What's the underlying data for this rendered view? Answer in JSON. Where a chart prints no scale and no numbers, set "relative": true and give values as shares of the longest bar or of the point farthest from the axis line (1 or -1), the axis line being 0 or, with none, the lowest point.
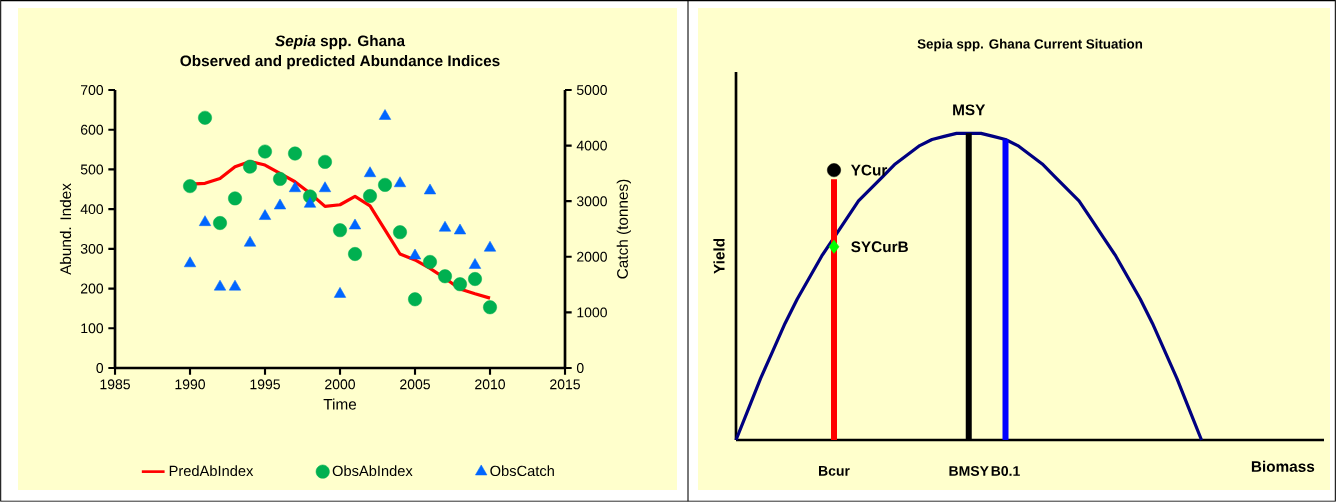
{
  "chart_data": [
    {
      "type": "scatter",
      "title": "*Sepia* spp. Ghana",
      "subtitle": "Observed and predicted Abundance Indices",
      "xlabel": "Time",
      "ylabel": "Abund. Index",
      "y2label": "Catch (tonnes)",
      "x": [
        1990,
        1991,
        1992,
        1993,
        1994,
        1995,
        1996,
        1997,
        1998,
        1999,
        2000,
        2001,
        2002,
        2003,
        2004,
        2005,
        2006,
        2007,
        2008,
        2009,
        2010
      ],
      "series": [
        {
          "name": "PredAbIndex",
          "type": "line",
          "color": "#ff0000",
          "marker": "none",
          "values": [
            463,
            465,
            477,
            507,
            520,
            511,
            490,
            469,
            440,
            407,
            411,
            432,
            408,
            348,
            287,
            272,
            251,
            226,
            199,
            187,
            176
          ]
        },
        {
          "name": "ObsAbIndex",
          "color": "#00b050",
          "marker": "circle",
          "values": [
            458,
            630,
            365,
            427,
            507,
            545,
            476,
            540,
            432,
            519,
            347,
            287,
            433,
            461,
            342,
            173,
            267,
            231,
            211,
            224,
            153
          ]
        },
        {
          "name": "ObsCatch",
          "color": "#0066ff",
          "marker": "triangle",
          "axis": "y2",
          "values": [
            1880,
            2620,
            1460,
            1460,
            2250,
            2730,
            2920,
            3230,
            2950,
            3230,
            1330,
            2560,
            3500,
            4530,
            3320,
            2020,
            3190,
            2520,
            2470,
            1850,
            2160
          ]
        }
      ],
      "xlim": [
        1985,
        2015
      ],
      "xticks": [
        1985,
        1990,
        1995,
        2000,
        2005,
        2010,
        2015
      ],
      "ylim": [
        0,
        700
      ],
      "yticks": [
        0,
        100,
        200,
        300,
        400,
        500,
        600,
        700
      ],
      "y2lim": [
        0,
        5000
      ],
      "y2ticks": [
        0,
        1000,
        2000,
        3000,
        4000,
        5000
      ],
      "legend": "bottom"
    },
    {
      "type": "line",
      "relative": true,
      "title": "Sepia spp. Ghana Current Situation",
      "xlabel": "Biomass",
      "ylabel": "Yield",
      "legend": false,
      "categories": [
        null,
        null,
        null,
        null,
        null,
        null,
        null,
        null,
        "Bcur",
        null,
        null,
        null,
        null,
        null,
        null,
        null,
        null,
        null,
        null,
        "BMSY",
        null,
        null,
        "B0.1",
        null,
        null,
        null,
        null,
        null,
        null,
        null,
        null,
        null,
        null,
        null,
        null,
        null,
        null,
        null,
        null,
        null,
        null,
        null,
        null,
        null,
        null,
        null,
        null,
        null,
        null
      ],
      "series": [
        {
          "color": "#000080",
          "marker": "none",
          "values": [
            0,
            0.1,
            0.2,
            0.29,
            0.38,
            0.46,
            0.53,
            0.6,
            0.66,
            0.72,
            0.78,
            0.82,
            0.86,
            0.9,
            0.93,
            0.96,
            0.98,
            0.99,
            1.0,
            1.0,
            1.0,
            0.99,
            0.98,
            0.96,
            0.93,
            0.9,
            0.86,
            0.82,
            0.78,
            0.72,
            0.66,
            0.6,
            0.53,
            0.46,
            0.38,
            0.29,
            0.2,
            0.1,
            0,
            null,
            null,
            null,
            null,
            null,
            null,
            null,
            null,
            null,
            null
          ]
        },
        {
          "type": "bar",
          "color": "#ff0000",
          "values": [
            null,
            null,
            null,
            null,
            null,
            null,
            null,
            null,
            0.85,
            null,
            null,
            null,
            null,
            null,
            null,
            null,
            null,
            null,
            null,
            null,
            null,
            null,
            null,
            null,
            null,
            null,
            null,
            null,
            null,
            null,
            null,
            null,
            null,
            null,
            null,
            null,
            null,
            null,
            null,
            null,
            null,
            null,
            null,
            null,
            null,
            null,
            null,
            null,
            null
          ]
        },
        {
          "type": "bar",
          "name": "MSY",
          "color": "#000000",
          "values": [
            null,
            null,
            null,
            null,
            null,
            null,
            null,
            null,
            null,
            null,
            null,
            null,
            null,
            null,
            null,
            null,
            null,
            null,
            null,
            1.0,
            null,
            null,
            null,
            null,
            null,
            null,
            null,
            null,
            null,
            null,
            null,
            null,
            null,
            null,
            null,
            null,
            null,
            null,
            null,
            null,
            null,
            null,
            null,
            null,
            null,
            null,
            null,
            null,
            null
          ]
        },
        {
          "type": "bar",
          "color": "#0000ff",
          "values": [
            null,
            null,
            null,
            null,
            null,
            null,
            null,
            null,
            null,
            null,
            null,
            null,
            null,
            null,
            null,
            null,
            null,
            null,
            null,
            null,
            null,
            null,
            0.98,
            null,
            null,
            null,
            null,
            null,
            null,
            null,
            null,
            null,
            null,
            null,
            null,
            null,
            null,
            null,
            null,
            null,
            null,
            null,
            null,
            null,
            null,
            null,
            null,
            null,
            null
          ]
        },
        {
          "type": "scatter",
          "name": "YCur",
          "color": "#000000",
          "marker": "circle",
          "values": [
            null,
            null,
            null,
            null,
            null,
            null,
            null,
            null,
            0.88,
            null,
            null,
            null,
            null,
            null,
            null,
            null,
            null,
            null,
            null,
            null,
            null,
            null,
            null,
            null,
            null,
            null,
            null,
            null,
            null,
            null,
            null,
            null,
            null,
            null,
            null,
            null,
            null,
            null,
            null,
            null,
            null,
            null,
            null,
            null,
            null,
            null,
            null,
            null,
            null
          ]
        },
        {
          "type": "scatter",
          "name": "SYCurB",
          "color": "#00ff00",
          "marker": "diamond",
          "values": [
            null,
            null,
            null,
            null,
            null,
            null,
            null,
            null,
            0.63,
            null,
            null,
            null,
            null,
            null,
            null,
            null,
            null,
            null,
            null,
            null,
            null,
            null,
            null,
            null,
            null,
            null,
            null,
            null,
            null,
            null,
            null,
            null,
            null,
            null,
            null,
            null,
            null,
            null,
            null,
            null,
            null,
            null,
            null,
            null,
            null,
            null,
            null,
            null,
            null
          ]
        }
      ]
    }
  ]
}
